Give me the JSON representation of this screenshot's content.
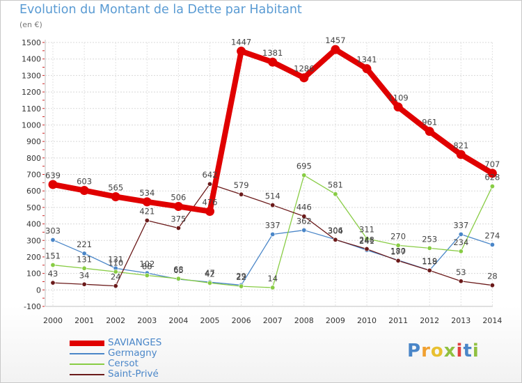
{
  "title": "Evolution du Montant de la Dette par Habitant",
  "unit": "(en €)",
  "brand": {
    "letters": [
      "P",
      "r",
      "o",
      "x",
      "i",
      "t",
      "i"
    ],
    "colors": [
      "#4a86c8",
      "#f0a030",
      "#e8c030",
      "#90c040",
      "#e04040",
      "#4a86c8",
      "#90c040"
    ]
  },
  "chart_data": {
    "type": "line",
    "x": [
      "2000",
      "2001",
      "2002",
      "2003",
      "2004",
      "2005",
      "2006",
      "2007",
      "2008",
      "2009",
      "2010",
      "2011",
      "2012",
      "2013",
      "2014"
    ],
    "ylim": [
      -100,
      1500
    ],
    "yticks": [
      -100,
      0,
      100,
      200,
      300,
      400,
      500,
      600,
      700,
      800,
      900,
      1000,
      1100,
      1200,
      1300,
      1400,
      1500
    ],
    "grid": true,
    "legend_position": "bottom-left",
    "series": [
      {
        "name": "SAVIANGES",
        "color": "#e00000",
        "values": [
          639,
          603,
          565,
          534,
          506,
          476,
          1447,
          1381,
          1286,
          1457,
          1341,
          1109,
          961,
          821,
          707
        ],
        "labels": [
          "639",
          "603",
          "565",
          "534",
          "506",
          "476",
          "1447",
          "1381",
          "1286",
          "1457",
          "1341",
          "1109",
          "961",
          "821",
          "707"
        ]
      },
      {
        "name": "Germagny",
        "color": "#4a86c8",
        "values": [
          303,
          221,
          131,
          102,
          65,
          47,
          29,
          337,
          362,
          306,
          241,
          180,
          119,
          337,
          274
        ],
        "labels": [
          "303",
          "221",
          "131",
          "102",
          "65",
          "47",
          "29",
          "337",
          "362",
          "306",
          "241",
          "180",
          "119",
          "337",
          "274"
        ]
      },
      {
        "name": "Cersot",
        "color": "#88cc44",
        "values": [
          151,
          131,
          110,
          88,
          68,
          42,
          22,
          14,
          695,
          581,
          311,
          270,
          253,
          234,
          628
        ],
        "labels": [
          "151",
          "131",
          "110",
          "88",
          "68",
          "42",
          "22",
          "14",
          "695",
          "581",
          "311",
          "270",
          "253",
          "234",
          "628"
        ]
      },
      {
        "name": "Saint-Privé",
        "color": "#6b1a1a",
        "values": [
          43,
          34,
          24,
          421,
          375,
          642,
          579,
          514,
          446,
          304,
          248,
          177,
          118,
          53,
          28
        ],
        "labels": [
          "43",
          "34",
          "24",
          "421",
          "375",
          "642",
          "579",
          "514",
          "446",
          "304",
          "248",
          "177",
          "118",
          "53",
          "28"
        ]
      }
    ]
  }
}
